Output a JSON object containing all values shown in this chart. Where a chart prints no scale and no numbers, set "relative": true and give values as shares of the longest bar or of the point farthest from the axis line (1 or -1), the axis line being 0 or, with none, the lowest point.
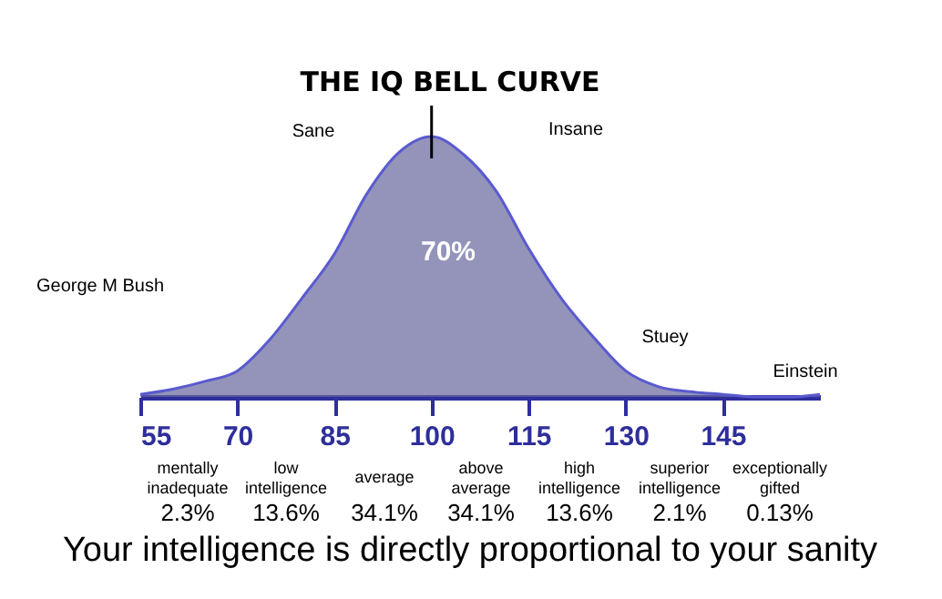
{
  "chart_data": {
    "type": "area",
    "title": "THE IQ BELL CURVE",
    "relative": true,
    "x": [
      55,
      60,
      65,
      70,
      75,
      80,
      85,
      90,
      95,
      100,
      105,
      110,
      115,
      120,
      125,
      130,
      135,
      140,
      145,
      150,
      155,
      160
    ],
    "series": [
      {
        "color": "#67679d",
        "values": [
          0.01,
          0.03,
          0.06,
          0.1,
          0.22,
          0.38,
          0.55,
          0.78,
          0.94,
          1,
          0.93,
          0.79,
          0.57,
          0.38,
          0.23,
          0.1,
          0.04,
          0.02,
          0.01,
          0,
          0,
          0.01
        ]
      }
    ],
    "xlim": [
      55,
      160
    ],
    "xticks": [
      55,
      70,
      85,
      100,
      115,
      130,
      145
    ],
    "ref_lines": [
      {
        "axis": "x",
        "value": 100,
        "color": "#000000"
      }
    ],
    "grid": false,
    "annotations": [
      "Sane",
      "Insane",
      "70%",
      "George M Bush",
      "Stuey",
      "Einstein",
      "mentally\ninadequate",
      "low\nintelligence",
      "average",
      "above\naverage",
      "high\nintelligence",
      "superior\nintelligence",
      "exceptionally\ngifted",
      "2.3%",
      "13.6%",
      "34.1%",
      "34.1%",
      "13.6%",
      "2.1%",
      "0.13%",
      "Your intelligence is directly proportional to your sanity"
    ]
  }
}
